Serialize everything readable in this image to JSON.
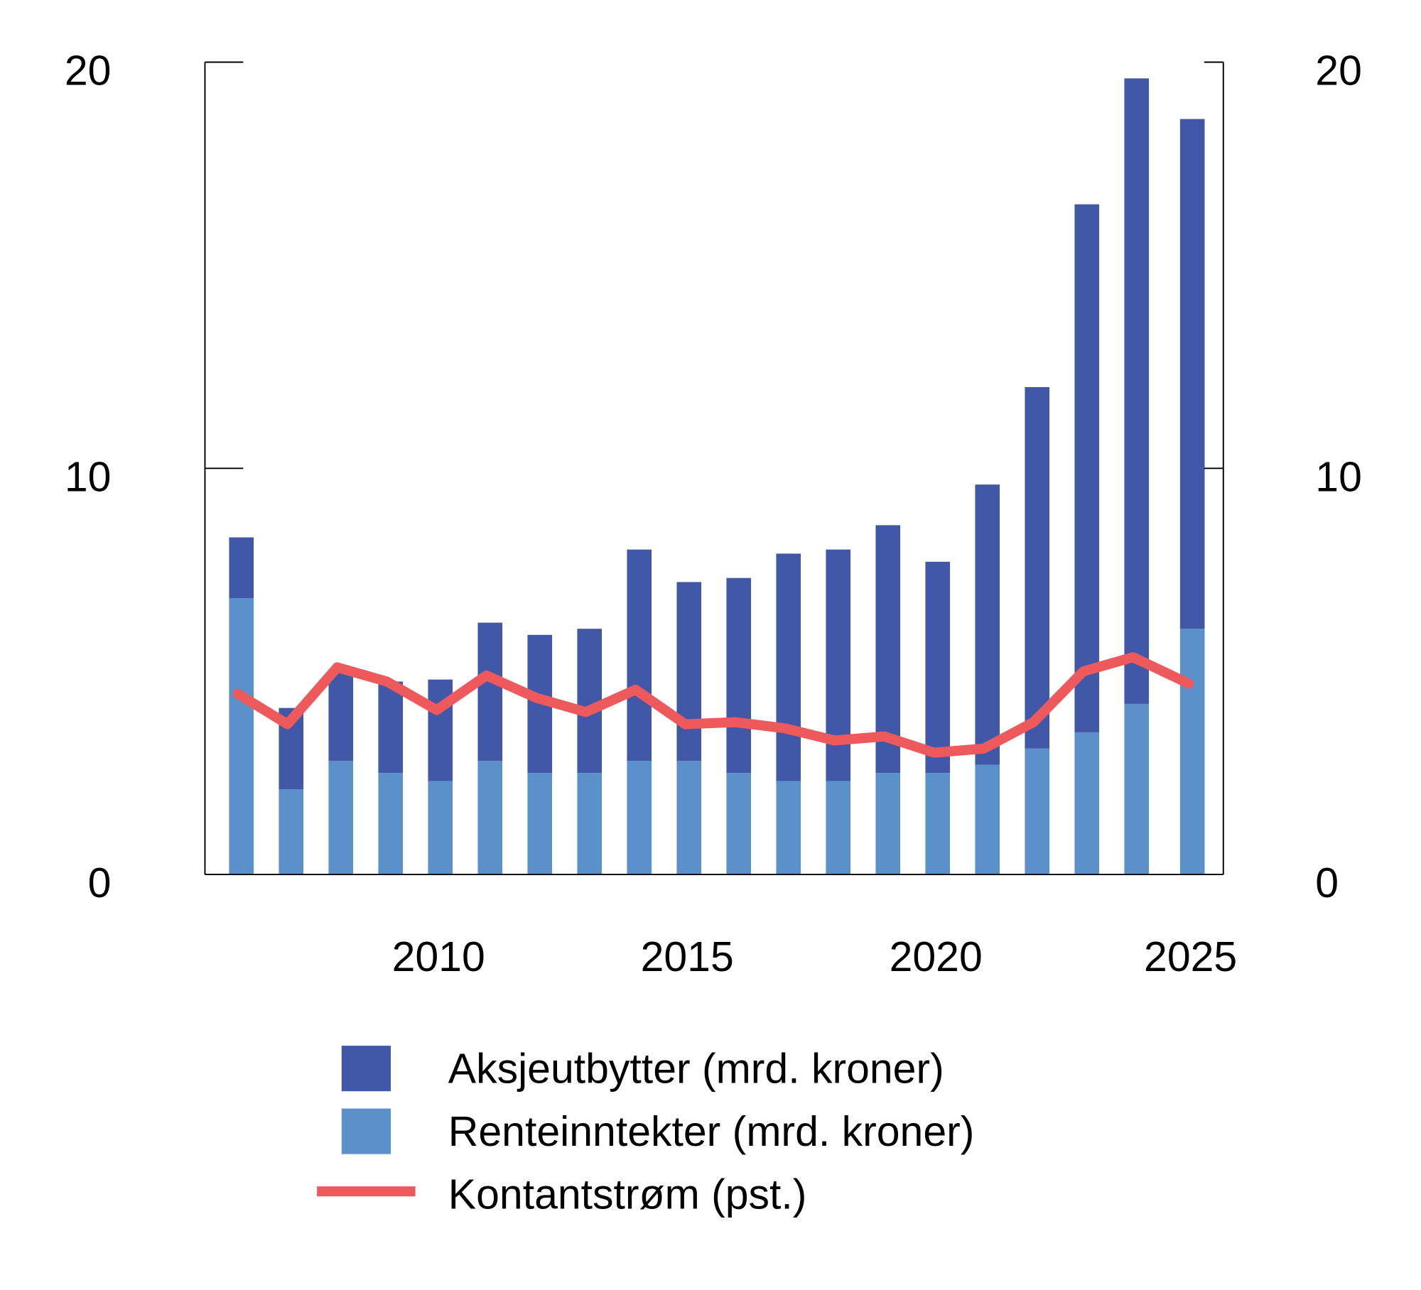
{
  "chart_data": {
    "type": "bar",
    "stacked": true,
    "x": [
      2006,
      2007,
      2008,
      2009,
      2010,
      2011,
      2012,
      2013,
      2014,
      2015,
      2016,
      2017,
      2018,
      2019,
      2020,
      2021,
      2022,
      2023,
      2024,
      2025
    ],
    "x_tick_labels": [
      "2010",
      "2015",
      "2020",
      "2025"
    ],
    "x_ticks": [
      2010,
      2015,
      2020,
      2025
    ],
    "y_left": {
      "range": [
        0,
        20
      ],
      "tick_labels": [
        "0",
        "10",
        "20"
      ],
      "ticks": [
        0,
        10,
        20
      ]
    },
    "y_right": {
      "range": [
        0,
        20
      ],
      "tick_labels": [
        "0",
        "10",
        "20"
      ],
      "ticks": [
        0,
        10,
        20
      ]
    },
    "grid": false,
    "legend_position": "bottom",
    "series": [
      {
        "name": "Renteinntekter (mrd. kroner)",
        "type": "bar",
        "axis": "left",
        "color": "#5B91CB",
        "values": [
          6.8,
          2.1,
          2.8,
          2.5,
          2.3,
          2.8,
          2.5,
          2.5,
          2.8,
          2.8,
          2.5,
          2.3,
          2.3,
          2.5,
          2.5,
          2.7,
          3.1,
          3.5,
          4.2,
          6.05
        ]
      },
      {
        "name": "Aksjeutbytter (mrd. kroner)",
        "type": "bar",
        "axis": "left",
        "color": "#4157A7",
        "values": [
          1.5,
          2.0,
          2.2,
          2.25,
          2.5,
          3.4,
          3.4,
          3.55,
          5.2,
          4.4,
          4.8,
          5.6,
          5.7,
          6.1,
          5.2,
          6.9,
          8.9,
          13.0,
          15.4,
          12.55
        ]
      },
      {
        "name": "Kontantstrøm (pst.)",
        "type": "line",
        "axis": "right",
        "color": "#EE5A5C",
        "values": [
          4.45,
          3.7,
          5.1,
          4.75,
          4.05,
          4.9,
          4.35,
          4.0,
          4.55,
          3.7,
          3.75,
          3.6,
          3.3,
          3.4,
          3.0,
          3.1,
          3.75,
          5.0,
          5.35,
          4.7
        ]
      }
    ],
    "legend": [
      {
        "label": "Aksjeutbytter (mrd. kroner)",
        "kind": "box",
        "color": "#4157A7"
      },
      {
        "label": "Renteinntekter (mrd. kroner)",
        "kind": "box",
        "color": "#5B91CB"
      },
      {
        "label": "Kontantstrøm (pst.)",
        "kind": "line",
        "color": "#EE5A5C"
      }
    ]
  }
}
